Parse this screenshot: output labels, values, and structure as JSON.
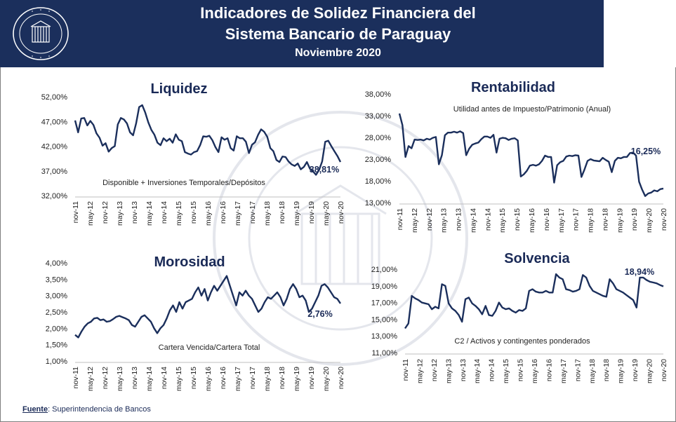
{
  "header": {
    "title_line1": "Indicadores de Solidez Financiera del",
    "title_line2": "Sistema Bancario de Paraguay",
    "subtitle": "Noviembre 2020",
    "logo_text": "BANCO CENTRAL DEL PARAGUAY"
  },
  "footer": {
    "source_label": "Fuente",
    "source_text": ": Superintendencia de Bancos"
  },
  "colors": {
    "header_bg": "#1b2f5c",
    "line": "#1b2f5c",
    "title_text": "#1a2a57",
    "watermark": "#e4e6ec"
  },
  "chart_data": [
    {
      "id": "liquidez",
      "type": "line",
      "title": "Liquidez",
      "note": "Disponible + Inversiones Temporales/Depósitos",
      "x_labels": [
        "nov-11",
        "may-12",
        "nov-12",
        "may-13",
        "nov-13",
        "may-14",
        "nov-14",
        "may-15",
        "nov-15",
        "may-16",
        "nov-16",
        "may-17",
        "nov-17",
        "may-18",
        "nov-18",
        "may-19",
        "nov-19",
        "may-20",
        "nov-20"
      ],
      "y_ticks": [
        "52,00%",
        "47,00%",
        "42,00%",
        "37,00%",
        "32,00%"
      ],
      "ylim": [
        32,
        52
      ],
      "end_label": "38,81%",
      "series": [
        {
          "values": [
            47.2,
            44.8,
            47.6,
            47.7,
            46.2,
            47.1,
            46.3,
            44.6,
            43.7,
            42.1,
            42.6,
            40.9,
            41.6,
            42.0,
            46.4,
            47.7,
            47.4,
            46.6,
            44.8,
            44.2,
            46.6,
            49.9,
            50.3,
            48.8,
            46.8,
            45.3,
            44.3,
            42.7,
            42.2,
            43.6,
            43.0,
            43.5,
            42.7,
            44.4,
            43.3,
            43.0,
            40.8,
            40.5,
            40.3,
            40.8,
            41.0,
            42.2,
            44.0,
            43.9,
            44.1,
            43.2,
            41.8,
            40.8,
            43.8,
            43.3,
            43.6,
            41.6,
            41.1,
            44.0,
            43.6,
            43.6,
            42.9,
            40.6,
            42.3,
            42.8,
            44.3,
            45.4,
            44.9,
            43.9,
            41.6,
            41.0,
            39.2,
            38.8,
            39.9,
            39.8,
            38.9,
            38.3,
            38.0,
            38.5,
            37.3,
            37.8,
            38.8,
            37.4,
            36.9,
            36.2,
            37.2,
            38.9,
            42.9,
            43.1,
            42.0,
            41.0,
            40.0,
            38.8
          ]
        }
      ]
    },
    {
      "id": "rentabilidad",
      "type": "line",
      "title": "Rentabilidad",
      "note": "Utilidad antes de Impuesto/Patrimonio (Anual)",
      "x_labels": [
        "nov-11",
        "may-12",
        "nov-12",
        "may-13",
        "nov-13",
        "may-14",
        "nov-14",
        "may-15",
        "nov-15",
        "may-16",
        "nov-16",
        "may-17",
        "nov-17",
        "may-18",
        "nov-18",
        "may-19",
        "nov-19",
        "may-20",
        "nov-20"
      ],
      "y_ticks": [
        "38,00%",
        "33,00%",
        "28,00%",
        "23,00%",
        "18,00%",
        "13,00%"
      ],
      "ylim": [
        13,
        38
      ],
      "end_label": "16,25%",
      "series": [
        {
          "values": [
            33.5,
            30.8,
            23.5,
            26.0,
            25.5,
            27.5,
            27.4,
            27.5,
            27.3,
            27.7,
            27.5,
            27.9,
            28.1,
            21.8,
            23.9,
            28.5,
            29.1,
            29.1,
            29.3,
            29.1,
            29.4,
            29.0,
            23.9,
            25.4,
            26.3,
            26.6,
            26.8,
            27.6,
            28.2,
            28.2,
            27.9,
            28.6,
            24.5,
            27.7,
            27.9,
            27.8,
            27.4,
            27.7,
            27.8,
            27.3,
            19.0,
            19.5,
            20.3,
            21.5,
            21.7,
            21.5,
            21.8,
            22.6,
            23.8,
            23.5,
            23.5,
            17.6,
            21.6,
            22.3,
            22.6,
            23.6,
            23.8,
            23.7,
            23.9,
            23.8,
            18.9,
            20.6,
            22.6,
            23.0,
            22.7,
            22.6,
            22.5,
            23.3,
            22.8,
            22.4,
            20.0,
            22.6,
            23.3,
            23.2,
            23.5,
            23.5,
            24.4,
            24.5,
            23.8,
            17.8,
            16.0,
            14.5,
            15.1,
            15.3,
            15.8,
            15.6,
            16.1,
            16.25
          ]
        }
      ]
    },
    {
      "id": "morosidad",
      "type": "line",
      "title": "Morosidad",
      "note": "Cartera Vencida/Cartera Total",
      "x_labels": [
        "nov-11",
        "may-12",
        "nov-12",
        "may-13",
        "nov-13",
        "may-14",
        "nov-14",
        "may-15",
        "nov-15",
        "may-16",
        "nov-16",
        "may-17",
        "nov-17",
        "may-18",
        "nov-18",
        "may-19",
        "nov-19",
        "may-20",
        "nov-20"
      ],
      "y_ticks": [
        "4,00%",
        "3,50%",
        "3,00%",
        "2,50%",
        "2,00%",
        "1,50%",
        "1,00%"
      ],
      "ylim": [
        1.0,
        4.0
      ],
      "end_label": "2,76%",
      "series": [
        {
          "values": [
            1.8,
            1.72,
            1.9,
            2.05,
            2.15,
            2.2,
            2.3,
            2.32,
            2.25,
            2.27,
            2.2,
            2.22,
            2.28,
            2.35,
            2.38,
            2.34,
            2.3,
            2.25,
            2.1,
            2.05,
            2.2,
            2.35,
            2.4,
            2.3,
            2.2,
            2.0,
            1.85,
            2.0,
            2.1,
            2.3,
            2.55,
            2.7,
            2.5,
            2.8,
            2.6,
            2.8,
            2.85,
            2.9,
            3.1,
            3.25,
            3.0,
            3.2,
            2.85,
            3.1,
            3.3,
            3.15,
            3.3,
            3.45,
            3.6,
            3.3,
            3.0,
            2.7,
            3.1,
            3.0,
            3.15,
            3.0,
            2.9,
            2.7,
            2.5,
            2.6,
            2.8,
            2.95,
            2.9,
            3.0,
            3.1,
            2.95,
            2.7,
            2.9,
            3.2,
            3.35,
            3.2,
            2.95,
            3.0,
            2.85,
            2.5,
            2.6,
            2.8,
            3.0,
            3.3,
            3.35,
            3.25,
            3.1,
            2.95,
            2.9,
            2.76
          ]
        }
      ]
    },
    {
      "id": "solvencia",
      "type": "line",
      "title": "Solvencia",
      "note": "C2 / Activos y contingentes ponderados",
      "x_labels": [
        "nov-11",
        "may-12",
        "nov-12",
        "may-13",
        "nov-13",
        "may-14",
        "nov-14",
        "may-15",
        "nov-15",
        "may-16",
        "nov-16",
        "may-17",
        "nov-17",
        "may-18",
        "nov-18",
        "may-19",
        "nov-19",
        "may-20",
        "nov-20"
      ],
      "y_ticks": [
        "21,00%",
        "19,00%",
        "17,00%",
        "15,00%",
        "13,00%",
        "11,00%"
      ],
      "ylim": [
        11,
        21
      ],
      "end_label": "18,94%",
      "series": [
        {
          "values": [
            13.9,
            14.5,
            17.8,
            17.5,
            17.3,
            17.0,
            16.9,
            16.8,
            16.2,
            16.5,
            16.3,
            19.2,
            19.0,
            16.9,
            16.3,
            16.0,
            15.5,
            14.7,
            17.4,
            17.6,
            16.9,
            16.6,
            16.2,
            15.6,
            16.6,
            15.5,
            15.4,
            16.0,
            17.0,
            16.4,
            16.2,
            16.3,
            16.0,
            15.8,
            16.1,
            16.0,
            16.3,
            18.4,
            18.6,
            18.3,
            18.2,
            18.2,
            18.4,
            18.2,
            18.2,
            20.4,
            20.0,
            19.8,
            18.6,
            18.5,
            18.3,
            18.4,
            18.6,
            20.3,
            20.0,
            19.0,
            18.4,
            18.2,
            18.0,
            17.8,
            17.7,
            19.8,
            19.3,
            18.6,
            18.4,
            18.2,
            17.9,
            17.6,
            17.3,
            16.4,
            20.0,
            20.0,
            19.7,
            19.5,
            19.4,
            19.3,
            19.1,
            18.94
          ]
        }
      ]
    }
  ]
}
